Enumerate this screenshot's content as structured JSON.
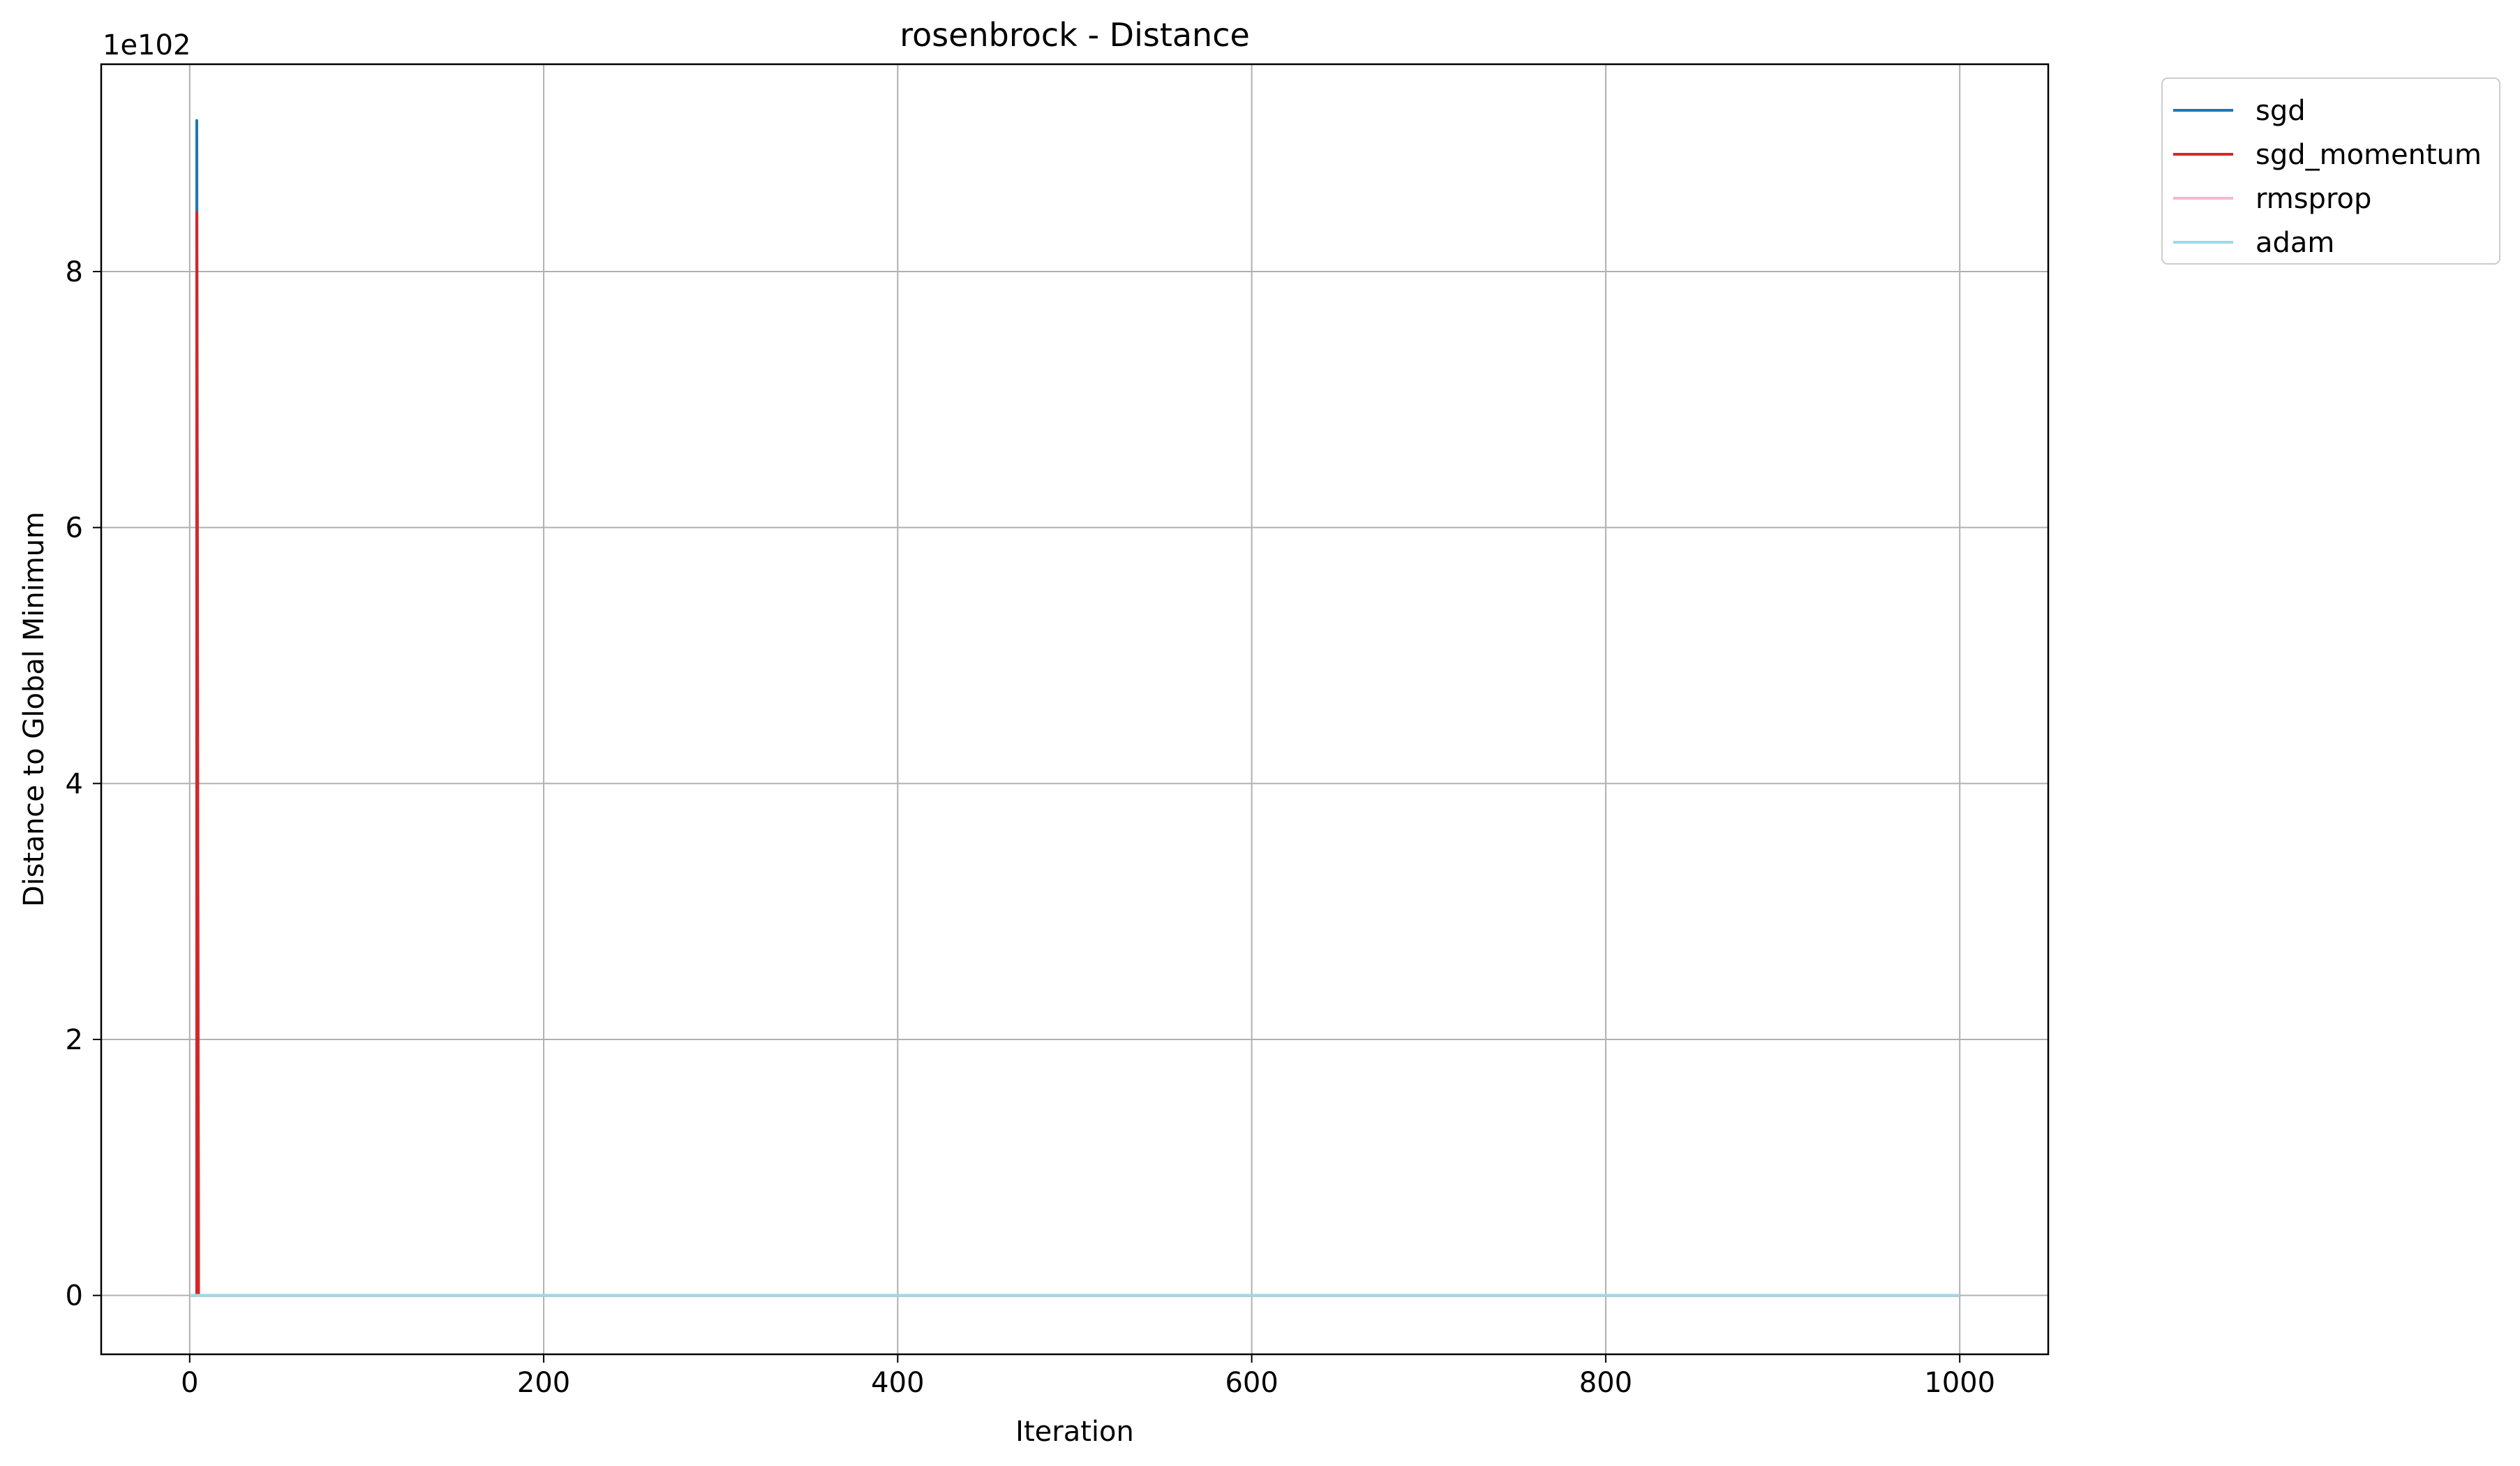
{
  "chart_data": {
    "type": "line",
    "title": "rosenbrock - Distance",
    "xlabel": "Iteration",
    "ylabel": "Distance to Global Minimum",
    "y_offset_label": "1e102",
    "xlim": [
      -50,
      1050
    ],
    "ylim": [
      -0.46,
      9.62
    ],
    "xticks": [
      0,
      200,
      400,
      600,
      800,
      1000
    ],
    "xtick_labels": [
      "0",
      "200",
      "400",
      "600",
      "800",
      "1000"
    ],
    "yticks": [
      0,
      2,
      4,
      6,
      8
    ],
    "ytick_labels": [
      "0",
      "2",
      "4",
      "6",
      "8"
    ],
    "grid": true,
    "legend_position": "outside-top-right",
    "series": [
      {
        "name": "sgd",
        "color": "#1f77b4",
        "x": [
          0,
          1,
          2,
          3,
          4,
          4,
          5,
          1000
        ],
        "y": [
          0,
          0,
          0,
          0,
          0,
          9.18,
          0,
          0
        ]
      },
      {
        "name": "sgd_momentum",
        "color": "#d62728",
        "x": [
          0,
          1,
          2,
          3,
          4,
          4,
          5,
          1000
        ],
        "y": [
          0,
          0,
          0,
          0,
          0,
          8.46,
          0,
          0
        ]
      },
      {
        "name": "rmsprop",
        "color": "#f7b6d2",
        "x": [
          0,
          1000
        ],
        "y": [
          0,
          0
        ]
      },
      {
        "name": "adam",
        "color": "#9edae5",
        "x": [
          0,
          1000
        ],
        "y": [
          0,
          0
        ]
      }
    ]
  }
}
